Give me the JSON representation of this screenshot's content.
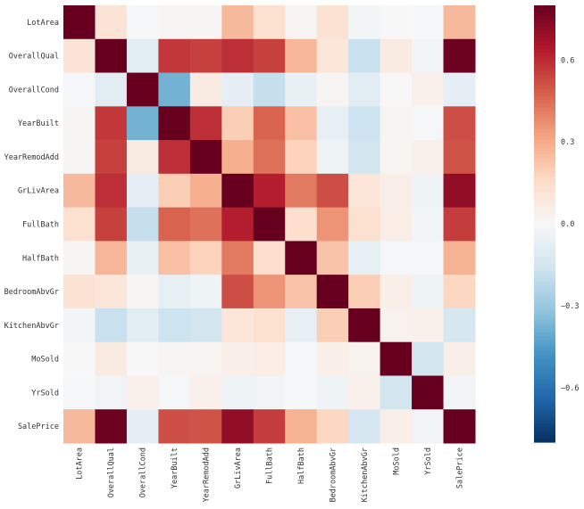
{
  "chart_data": {
    "type": "heatmap",
    "title": "",
    "xlabel": "",
    "ylabel": "",
    "labels": [
      "LotArea",
      "OverallQual",
      "OverallCond",
      "YearBuilt",
      "YearRemodAdd",
      "GrLivArea",
      "FullBath",
      "HalfBath",
      "BedroomAbvGr",
      "KitchenAbvGr",
      "MoSold",
      "YrSold",
      "SalePrice"
    ],
    "values": [
      [
        1.0,
        0.11,
        -0.01,
        0.01,
        0.01,
        0.26,
        0.13,
        0.01,
        0.12,
        -0.02,
        0.0,
        -0.01,
        0.26
      ],
      [
        0.11,
        1.0,
        -0.09,
        0.57,
        0.55,
        0.59,
        0.55,
        0.27,
        0.1,
        -0.18,
        0.07,
        -0.03,
        0.79
      ],
      [
        -0.01,
        -0.09,
        1.0,
        -0.38,
        0.07,
        -0.08,
        -0.19,
        -0.06,
        0.01,
        -0.09,
        -0.0,
        0.04,
        -0.08
      ],
      [
        0.01,
        0.57,
        -0.38,
        1.0,
        0.59,
        0.2,
        0.47,
        0.24,
        -0.07,
        -0.17,
        0.01,
        -0.01,
        0.52
      ],
      [
        0.01,
        0.55,
        0.07,
        0.59,
        1.0,
        0.29,
        0.44,
        0.18,
        -0.04,
        -0.15,
        0.02,
        0.04,
        0.51
      ],
      [
        0.26,
        0.59,
        -0.08,
        0.2,
        0.29,
        1.0,
        0.63,
        0.42,
        0.52,
        0.1,
        0.05,
        -0.04,
        0.71
      ],
      [
        0.13,
        0.55,
        -0.19,
        0.47,
        0.44,
        0.63,
        1.0,
        0.14,
        0.36,
        0.13,
        0.06,
        -0.02,
        0.56
      ],
      [
        0.01,
        0.27,
        -0.06,
        0.24,
        0.18,
        0.42,
        0.14,
        1.0,
        0.23,
        -0.07,
        -0.01,
        -0.01,
        0.28
      ],
      [
        0.12,
        0.1,
        0.01,
        -0.07,
        -0.04,
        0.52,
        0.36,
        0.23,
        1.0,
        0.2,
        0.05,
        -0.04,
        0.17
      ],
      [
        -0.02,
        -0.18,
        -0.09,
        -0.17,
        -0.15,
        0.1,
        0.13,
        -0.07,
        0.2,
        1.0,
        0.03,
        0.04,
        -0.14
      ],
      [
        0.0,
        0.07,
        -0.0,
        0.01,
        0.02,
        0.05,
        0.06,
        -0.01,
        0.05,
        0.03,
        1.0,
        -0.15,
        0.05
      ],
      [
        -0.01,
        -0.03,
        0.04,
        -0.01,
        0.04,
        -0.04,
        -0.02,
        -0.01,
        -0.04,
        0.04,
        -0.15,
        1.0,
        -0.03
      ],
      [
        0.26,
        0.79,
        -0.08,
        0.52,
        0.51,
        0.71,
        0.56,
        0.28,
        0.17,
        -0.14,
        0.05,
        -0.03,
        1.0
      ]
    ],
    "colormap": "RdBu_r",
    "vmin": -0.8,
    "vmax": 0.8,
    "colorbar": {
      "ticks": [
        0.6,
        0.3,
        0.0,
        -0.3,
        -0.6
      ],
      "tick_labels": [
        "0.6",
        "0.3",
        "0.0",
        "−0.3",
        "−0.6"
      ]
    },
    "grid": false
  }
}
